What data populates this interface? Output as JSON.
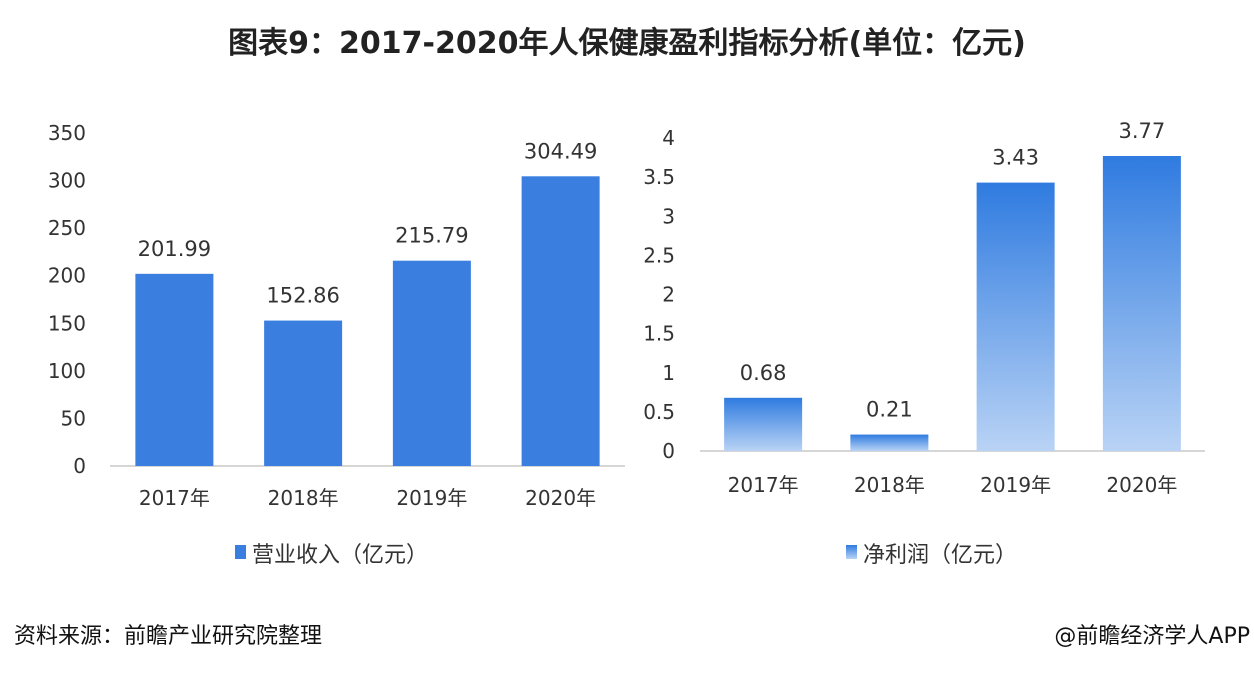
{
  "title": "图表9：2017-2020年人保健康盈利指标分析(单位：亿元)",
  "footer": {
    "source": "资料来源：前瞻产业研究院整理",
    "credit": "@前瞻经济学人APP"
  },
  "colors": {
    "bar_solid": "#3a7fe0",
    "bar_grad_top": "#2f7be0",
    "bar_grad_bottom": "#b9d3f5",
    "axis": "#c8c8c8",
    "text": "#333333"
  },
  "chart_data": [
    {
      "type": "bar",
      "categories": [
        "2017年",
        "2018年",
        "2019年",
        "2020年"
      ],
      "series": [
        {
          "name": "营业收入（亿元）",
          "values": [
            201.99,
            152.86,
            215.79,
            304.49
          ]
        }
      ],
      "ylim": [
        0,
        350
      ],
      "yticks": [
        "0",
        "50",
        "100",
        "150",
        "200",
        "250",
        "300",
        "350"
      ],
      "data_labels": [
        "201.99",
        "152.86",
        "215.79",
        "304.49"
      ],
      "legend": "bottom",
      "grid": false
    },
    {
      "type": "bar",
      "categories": [
        "2017年",
        "2018年",
        "2019年",
        "2020年"
      ],
      "series": [
        {
          "name": "净利润（亿元）",
          "values": [
            0.68,
            0.21,
            3.43,
            3.77
          ]
        }
      ],
      "ylim": [
        0,
        4
      ],
      "yticks": [
        "0",
        "0.5",
        "1",
        "1.5",
        "2",
        "2.5",
        "3",
        "3.5",
        "4"
      ],
      "data_labels": [
        "0.68",
        "0.21",
        "3.43",
        "3.77"
      ],
      "legend": "bottom",
      "grid": false
    }
  ]
}
